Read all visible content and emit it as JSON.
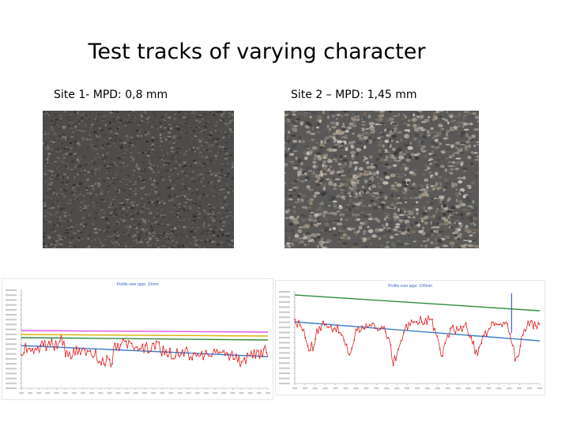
{
  "slide": {
    "title": "Test tracks of varying character",
    "site1_caption": "Site 1- MPD: 0,8 mm",
    "site2_caption": "Site 2 – MPD: 1,45 mm"
  },
  "photos": [
    {
      "name": "site-1-texture-photo",
      "tone": "dark fine asphalt"
    },
    {
      "name": "site-2-texture-photo",
      "tone": "coarse mixed stone chippings"
    }
  ],
  "charts": [
    {
      "name": "site-1-profile-chart",
      "title": "Profile over appr. 10mm"
    },
    {
      "name": "site-2-profile-chart",
      "title": "Profile over appr. 100mm"
    }
  ],
  "colors": {
    "profile": "#e02020",
    "trend_blue": "#3a7fc8",
    "trend_green": "#2e8b3a",
    "trend_pink": "#e055e0",
    "trend_yellow": "#d7b400",
    "spike": "#3a4fd0"
  }
}
